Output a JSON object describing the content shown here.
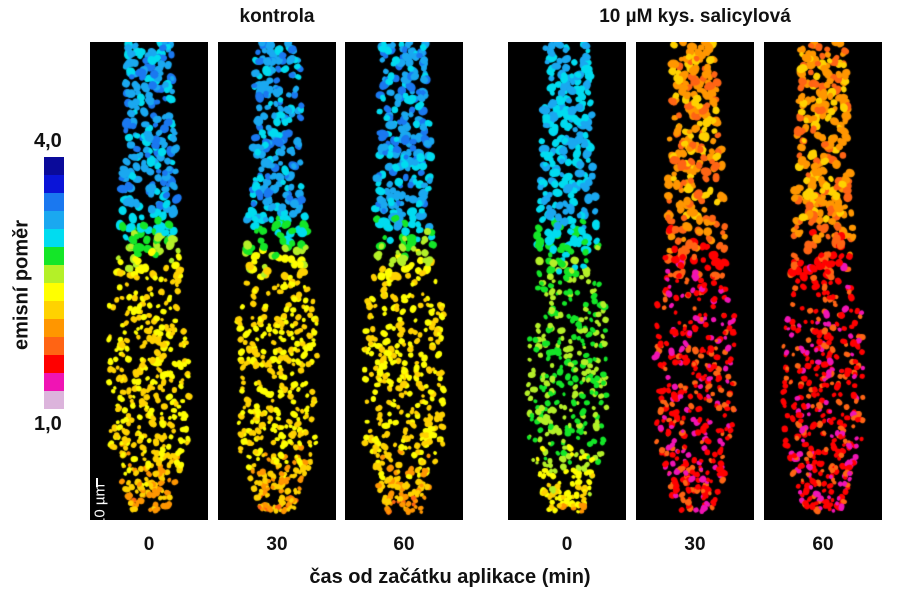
{
  "groups": [
    {
      "title": "kontrola"
    },
    {
      "title": "10 µM kys. salicylová"
    }
  ],
  "colorbar": {
    "label": "emisní poměr",
    "max_label": "4,0",
    "min_label": "1,0",
    "colors": [
      "#0a0a9a",
      "#0a14d8",
      "#1a78f0",
      "#1aa8f0",
      "#00dcf0",
      "#14e628",
      "#b4f028",
      "#ffff00",
      "#ffd200",
      "#ff9600",
      "#ff6414",
      "#ff0000",
      "#f014b4",
      "#dcb4dc"
    ]
  },
  "scale_bar": {
    "label": "10 µm"
  },
  "panels": [
    {
      "group": "kontrola",
      "time": "0"
    },
    {
      "group": "kontrola",
      "time": "30"
    },
    {
      "group": "kontrola",
      "time": "60"
    },
    {
      "group": "10 µM kys. salicylová",
      "time": "0"
    },
    {
      "group": "10 µM kys. salicylová",
      "time": "30"
    },
    {
      "group": "10 µM kys. salicylová",
      "time": "60"
    }
  ],
  "x_axis_title": "čas od začátku aplikace (min)"
}
